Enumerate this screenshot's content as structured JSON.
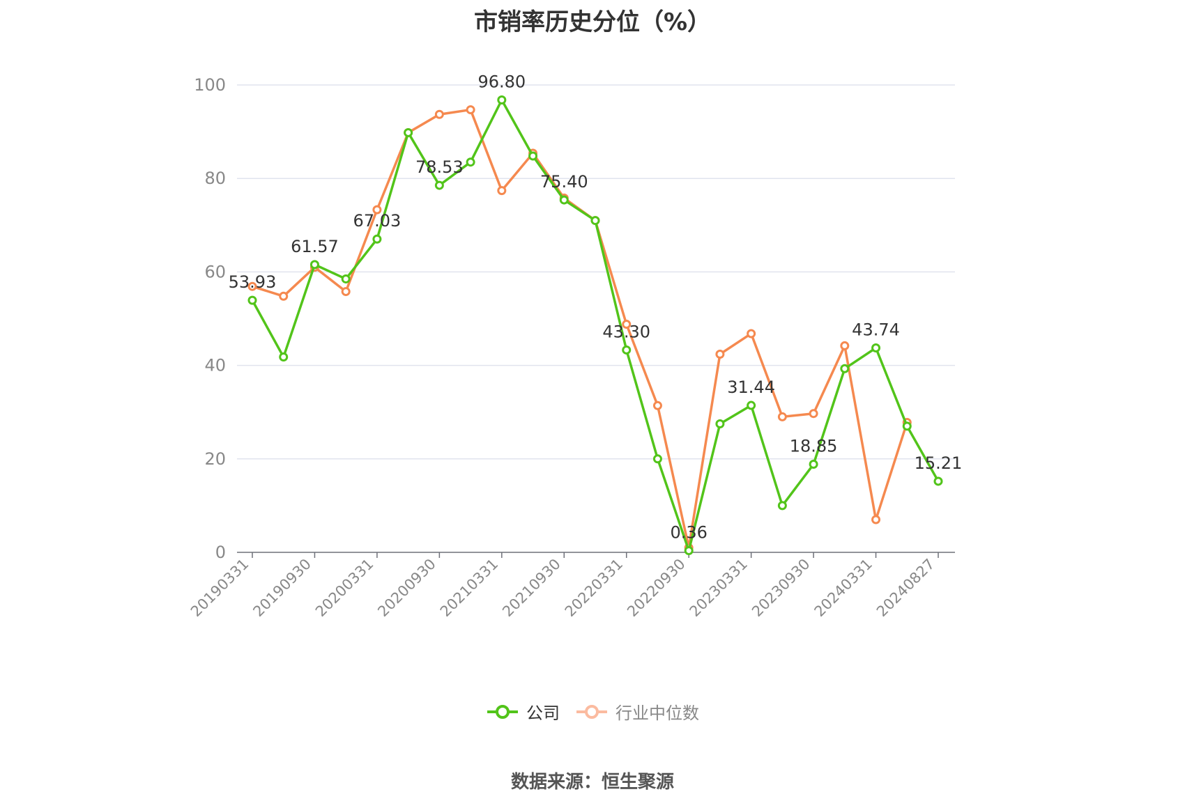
{
  "chart_data": {
    "type": "line",
    "title": "市销率历史分位（%）",
    "source": "数据来源：恒生聚源",
    "ylim": [
      0,
      100
    ],
    "y_ticks": [
      "0",
      "20",
      "40",
      "60",
      "80",
      "100"
    ],
    "x_tick_labels": [
      "20190331",
      "20190930",
      "20200331",
      "20200930",
      "20210331",
      "20210930",
      "20220331",
      "20220930",
      "20230331",
      "20230930",
      "20240331",
      "20240827"
    ],
    "x": [
      "20190331",
      "",
      "20190930",
      "",
      "20200331",
      "",
      "20200930",
      "",
      "20210331",
      "",
      "20210930",
      "",
      "20220331",
      "",
      "20220930",
      "",
      "20230331",
      "",
      "20230930",
      "",
      "20240331",
      "",
      "20240827"
    ],
    "grid": true,
    "legend_position": "bottom-center",
    "series": [
      {
        "name": "公司",
        "color": "#52c41a",
        "values": [
          53.93,
          41.8,
          61.57,
          58.5,
          67.03,
          89.8,
          78.53,
          83.5,
          96.8,
          84.8,
          75.4,
          71.0,
          43.3,
          20.0,
          0.36,
          27.5,
          31.44,
          10.0,
          18.85,
          39.3,
          43.74,
          27.0,
          15.21
        ],
        "labels": [
          "53.93",
          "",
          "61.57",
          "",
          "67.03",
          "",
          "78.53",
          "",
          "96.80",
          "",
          "75.40",
          "",
          "43.30",
          "",
          "0.36",
          "",
          "31.44",
          "",
          "18.85",
          "",
          "43.74",
          "",
          "15.21"
        ]
      },
      {
        "name": "行业中位数",
        "color": "#f5894f",
        "legend_color": "#fbbba0",
        "values": [
          56.9,
          54.8,
          61.0,
          55.8,
          73.3,
          89.8,
          93.7,
          94.7,
          77.4,
          85.4,
          75.8,
          71.0,
          48.8,
          31.4,
          1.0,
          42.4,
          46.8,
          29.0,
          29.7,
          44.2,
          7.0,
          27.8,
          null
        ]
      }
    ]
  }
}
